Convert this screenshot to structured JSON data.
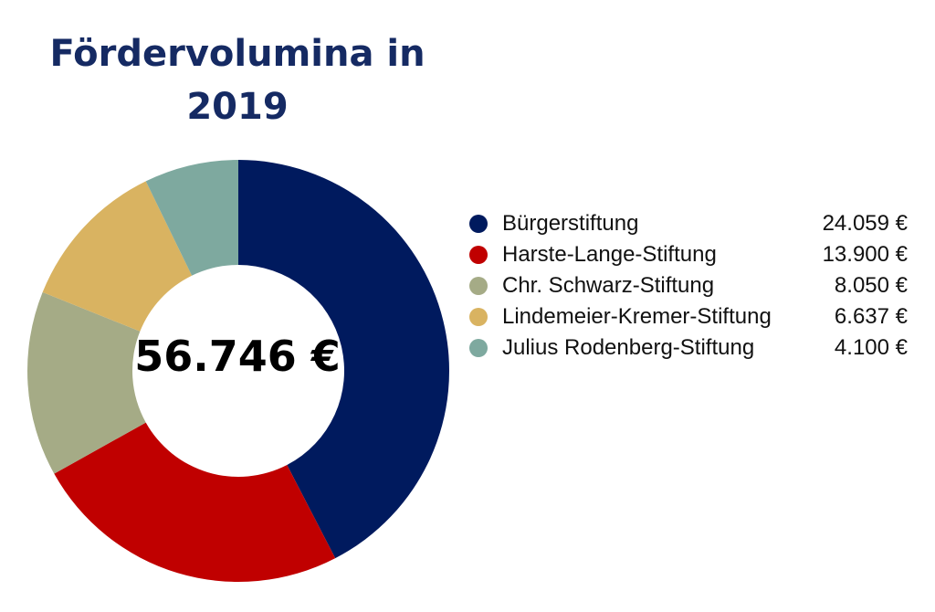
{
  "chart_data": {
    "type": "pie",
    "title": "Fördervolumina in 2019",
    "center_label": "56.746 €",
    "legend_placement": "right",
    "categories": [
      "Bürgerstiftung",
      "Harste-Lange-Stiftung",
      "Chr. Schwarz-Stiftung",
      "Lindemeier-Kremer-Stiftung",
      "Julius Rodenberg-Stiftung"
    ],
    "values": [
      24059,
      13900,
      8050,
      6637,
      4100
    ],
    "value_labels": [
      "24.059 €",
      "13.900 €",
      "8.050 €",
      "6.637 €",
      "4.100 €"
    ],
    "colors": [
      "#001a5e",
      "#c00000",
      "#a5ab86",
      "#d9b361",
      "#7ea99f"
    ]
  }
}
